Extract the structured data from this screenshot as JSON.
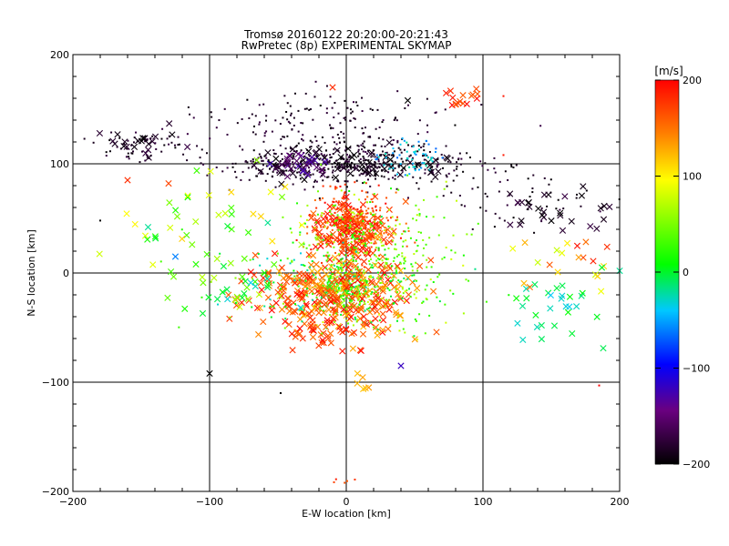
{
  "chart_data": {
    "type": "scatter",
    "title": "Tromsø 20160122 20:20:00-20:21:43",
    "subtitle": "RwPretec (8p) EXPERIMENTAL SKYMAP",
    "xlabel": "E-W location [km]",
    "ylabel": "N-S location [km]",
    "xlim": [
      -200,
      200
    ],
    "ylim": [
      -200,
      200
    ],
    "xticks": [
      -200,
      -100,
      0,
      100,
      200
    ],
    "yticks": [
      -200,
      -100,
      0,
      100,
      200
    ],
    "grid": true,
    "colorbar": {
      "label": "[m/s]",
      "range": [
        -200,
        200
      ],
      "ticks": [
        200,
        100,
        0,
        -100,
        -200
      ],
      "colormap": [
        "#000000",
        "#6a0080",
        "#0000ff",
        "#00c8ff",
        "#00ff00",
        "#ffff00",
        "#ff8000",
        "#ff0000"
      ]
    },
    "clusters": [
      {
        "center": [
          0,
          100
        ],
        "spread": [
          45,
          10
        ],
        "count": 450,
        "velocity": [
          -200,
          -170
        ],
        "marker": "dot"
      },
      {
        "center": [
          -5,
          100
        ],
        "spread": [
          40,
          8
        ],
        "count": 70,
        "velocity": [
          -200,
          -180
        ],
        "marker": "cross"
      },
      {
        "center": [
          -35,
          100
        ],
        "spread": [
          10,
          6
        ],
        "count": 30,
        "velocity": [
          -170,
          -120
        ],
        "marker": "cross"
      },
      {
        "center": [
          45,
          105
        ],
        "spread": [
          12,
          8
        ],
        "count": 60,
        "velocity": [
          -70,
          -20
        ],
        "marker": "dot"
      },
      {
        "center": [
          -20,
          140
        ],
        "spread": [
          45,
          15
        ],
        "count": 160,
        "velocity": [
          -200,
          -170
        ],
        "marker": "dot"
      },
      {
        "center": [
          -150,
          115
        ],
        "spread": [
          20,
          8
        ],
        "count": 60,
        "velocity": [
          -200,
          -170
        ],
        "marker": "dot"
      },
      {
        "center": [
          -150,
          118
        ],
        "spread": [
          15,
          7
        ],
        "count": 22,
        "velocity": [
          -200,
          -170
        ],
        "marker": "cross"
      },
      {
        "center": [
          5,
          45
        ],
        "spread": [
          15,
          15
        ],
        "count": 320,
        "velocity": [
          150,
          200
        ],
        "marker": "dot"
      },
      {
        "center": [
          5,
          40
        ],
        "spread": [
          15,
          15
        ],
        "count": 140,
        "velocity": [
          150,
          200
        ],
        "marker": "cross"
      },
      {
        "center": [
          20,
          40
        ],
        "spread": [
          30,
          20
        ],
        "count": 180,
        "velocity": [
          10,
          80
        ],
        "marker": "dot"
      },
      {
        "center": [
          0,
          -15
        ],
        "spread": [
          12,
          12
        ],
        "count": 340,
        "velocity": [
          -20,
          80
        ],
        "marker": "dot"
      },
      {
        "center": [
          0,
          -20
        ],
        "spread": [
          25,
          20
        ],
        "count": 230,
        "velocity": [
          120,
          200
        ],
        "marker": "cross"
      },
      {
        "center": [
          30,
          -5
        ],
        "spread": [
          30,
          25
        ],
        "count": 200,
        "velocity": [
          -10,
          90
        ],
        "marker": "dot"
      },
      {
        "center": [
          -40,
          -20
        ],
        "spread": [
          25,
          15
        ],
        "count": 100,
        "velocity": [
          130,
          200
        ],
        "marker": "cross"
      },
      {
        "center": [
          -20,
          0
        ],
        "spread": [
          40,
          20
        ],
        "count": 110,
        "velocity": [
          -40,
          60
        ],
        "marker": "dot"
      },
      {
        "center": [
          85,
          160
        ],
        "spread": [
          6,
          5
        ],
        "count": 16,
        "velocity": [
          160,
          200
        ],
        "marker": "cross"
      },
      {
        "center": [
          150,
          60
        ],
        "spread": [
          30,
          10
        ],
        "count": 30,
        "velocity": [
          -200,
          -170
        ],
        "marker": "cross"
      },
      {
        "center": [
          130,
          65
        ],
        "spread": [
          40,
          12
        ],
        "count": 50,
        "velocity": [
          -200,
          -170
        ],
        "marker": "dot"
      },
      {
        "center": [
          150,
          -30
        ],
        "spread": [
          20,
          15
        ],
        "count": 30,
        "velocity": [
          -40,
          10
        ],
        "marker": "cross"
      },
      {
        "center": [
          160,
          10
        ],
        "spread": [
          25,
          15
        ],
        "count": 20,
        "velocity": [
          60,
          200
        ],
        "marker": "cross"
      },
      {
        "center": [
          -100,
          50
        ],
        "spread": [
          40,
          25
        ],
        "count": 40,
        "velocity": [
          -20,
          120
        ],
        "marker": "cross"
      },
      {
        "center": [
          -80,
          -15
        ],
        "spread": [
          25,
          15
        ],
        "count": 40,
        "velocity": [
          -40,
          80
        ],
        "marker": "cross"
      },
      {
        "center": [
          10,
          -100
        ],
        "spread": [
          5,
          5
        ],
        "count": 6,
        "velocity": [
          110,
          140
        ],
        "marker": "cross"
      },
      {
        "center": [
          0,
          -190
        ],
        "spread": [
          5,
          3
        ],
        "count": 5,
        "velocity": [
          160,
          200
        ],
        "marker": "dot"
      },
      {
        "center": [
          -15,
          -55
        ],
        "spread": [
          15,
          6
        ],
        "count": 30,
        "velocity": [
          150,
          200
        ],
        "marker": "cross"
      }
    ],
    "points": [
      {
        "x": -100,
        "y": -92,
        "v": -200,
        "marker": "cross"
      },
      {
        "x": 40,
        "y": -85,
        "v": -120,
        "marker": "cross"
      },
      {
        "x": -160,
        "y": 85,
        "v": 180,
        "marker": "cross"
      },
      {
        "x": -130,
        "y": 82,
        "v": 170,
        "marker": "cross"
      },
      {
        "x": -145,
        "y": 42,
        "v": -20,
        "marker": "cross"
      },
      {
        "x": -125,
        "y": 15,
        "v": -60,
        "marker": "cross"
      },
      {
        "x": -110,
        "y": 8,
        "v": 20,
        "marker": "cross"
      },
      {
        "x": 187,
        "y": 5,
        "v": 0,
        "marker": "cross"
      },
      {
        "x": 200,
        "y": 2,
        "v": -20,
        "marker": "cross"
      },
      {
        "x": 185,
        "y": -103,
        "v": 200,
        "marker": "dot"
      },
      {
        "x": -180,
        "y": 48,
        "v": -200,
        "marker": "dot"
      },
      {
        "x": -48,
        "y": -110,
        "v": -200,
        "marker": "dot"
      },
      {
        "x": 45,
        "y": 158,
        "v": -200,
        "marker": "cross"
      },
      {
        "x": 115,
        "y": 108,
        "v": 190,
        "marker": "dot"
      },
      {
        "x": 115,
        "y": 162,
        "v": 190,
        "marker": "dot"
      },
      {
        "x": -10,
        "y": 170,
        "v": 180,
        "marker": "cross"
      }
    ]
  }
}
